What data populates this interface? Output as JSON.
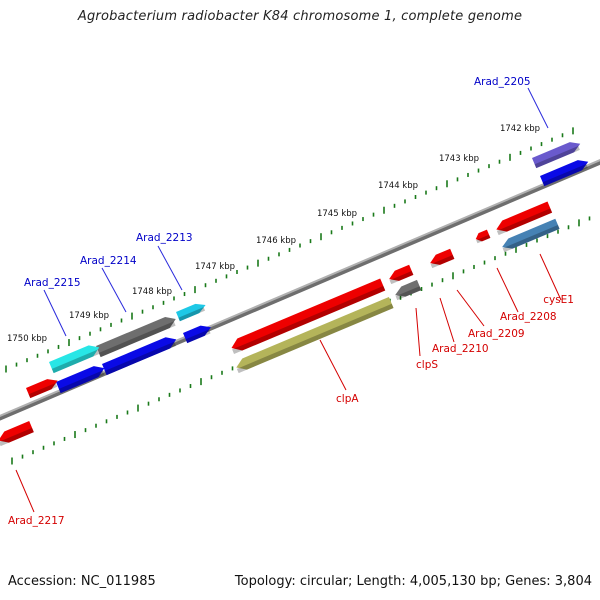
{
  "title": "Agrobacterium radiobacter K84 chromosome 1, complete genome",
  "footer": {
    "accession": "Accession: NC_011985",
    "summary": "Topology: circular; Length: 4,005,130 bp; Genes: 3,804"
  },
  "colors": {
    "forward_label": "#0000c8",
    "reverse_label": "#d40000",
    "tick": "#1a7a1a",
    "backbone": "#8a8a8a",
    "leader_forward": "#2a2adc",
    "leader_reverse": "#d40000"
  },
  "scale_labels": [
    "1742 kbp",
    "1743 kbp",
    "1744 kbp",
    "1745 kbp",
    "1746 kbp",
    "1747 kbp",
    "1748 kbp",
    "1749 kbp",
    "1750 kbp"
  ],
  "genes": [
    {
      "name": "Arad_2205",
      "strand": "forward",
      "color": "#6a5acd",
      "lane": 2
    },
    {
      "name": "",
      "strand": "forward",
      "color": "#0a0ae6",
      "lane": 1
    },
    {
      "name": "Arad_2213",
      "strand": "forward",
      "color": "#1ec8e6",
      "lane": 2
    },
    {
      "name": "",
      "strand": "forward",
      "color": "#0a0ae6",
      "lane": 1
    },
    {
      "name": "Arad_2214",
      "strand": "forward",
      "color": "#6e6e6e",
      "lane": 2
    },
    {
      "name": "",
      "strand": "forward",
      "color": "#0a0ae6",
      "lane": 1
    },
    {
      "name": "Arad_2215",
      "strand": "forward",
      "color": "#28e6e6",
      "lane": 2
    },
    {
      "name": "",
      "strand": "forward",
      "color": "#0a0ae6",
      "lane": 1
    },
    {
      "name": "",
      "strand": "reverse",
      "color": "#ee0000",
      "lane": 1
    },
    {
      "name": "cysE1",
      "strand": "reverse",
      "color": "#4682b4",
      "lane": 2
    },
    {
      "name": "Arad_2208",
      "strand": "reverse",
      "color": "#ee0000",
      "lane": 1
    },
    {
      "name": "Arad_2209",
      "strand": "reverse",
      "color": "#ee0000",
      "lane": 1
    },
    {
      "name": "Arad_2210",
      "strand": "reverse",
      "color": "#ee0000",
      "lane": 1
    },
    {
      "name": "clpS",
      "strand": "reverse",
      "color": "#707070",
      "lane": 2
    },
    {
      "name": "",
      "strand": "reverse",
      "color": "#ee0000",
      "lane": 1
    },
    {
      "name": "",
      "strand": "reverse",
      "color": "#ee0000",
      "lane": 1
    },
    {
      "name": "clpA",
      "strand": "reverse",
      "color": "#b4b45a",
      "lane": 2
    },
    {
      "name": "Arad_2217",
      "strand": "reverse",
      "color": "#ee0000",
      "lane": 1
    }
  ]
}
